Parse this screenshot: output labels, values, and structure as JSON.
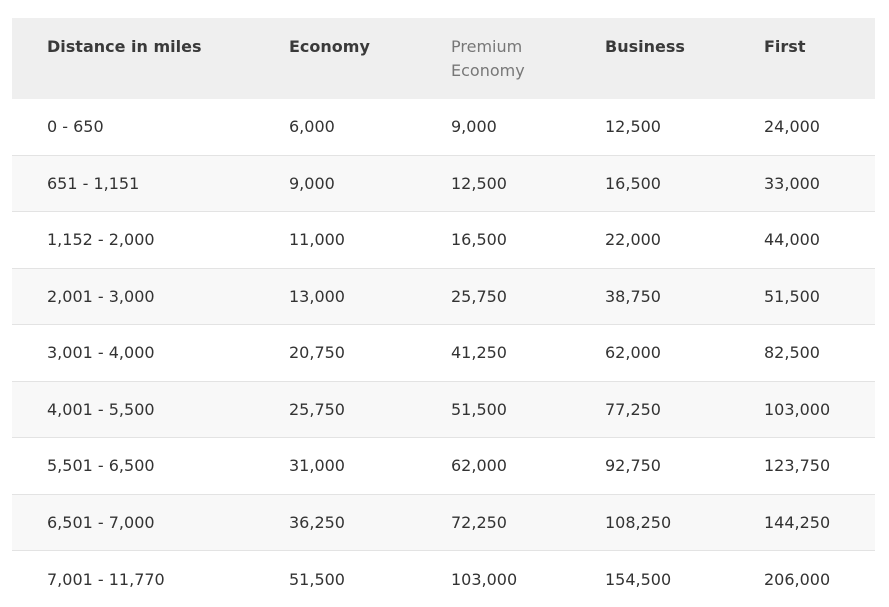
{
  "table": {
    "headers": [
      "Distance in miles",
      "Economy",
      "Premium Economy",
      "Business",
      "First"
    ],
    "rows": [
      [
        "0 - 650",
        "6,000",
        "9,000",
        "12,500",
        "24,000"
      ],
      [
        "651 - 1,151",
        "9,000",
        "12,500",
        "16,500",
        "33,000"
      ],
      [
        "1,152 - 2,000",
        "11,000",
        "16,500",
        "22,000",
        "44,000"
      ],
      [
        "2,001 - 3,000",
        "13,000",
        "25,750",
        "38,750",
        "51,500"
      ],
      [
        "3,001 - 4,000",
        "20,750",
        "41,250",
        "62,000",
        "82,500"
      ],
      [
        "4,001 - 5,500",
        "25,750",
        "51,500",
        "77,250",
        "103,000"
      ],
      [
        "5,501 - 6,500",
        "31,000",
        "62,000",
        "92,750",
        "123,750"
      ],
      [
        "6,501 - 7,000",
        "36,250",
        "72,250",
        "108,250",
        "144,250"
      ],
      [
        "7,001 - 11,770",
        "51,500",
        "103,000",
        "154,500",
        "206,000"
      ]
    ]
  },
  "colors": {
    "header_bg": "#efefef",
    "alt_row_bg": "#f8f8f8",
    "divider": "#e3e3e3",
    "text": "#333333"
  }
}
